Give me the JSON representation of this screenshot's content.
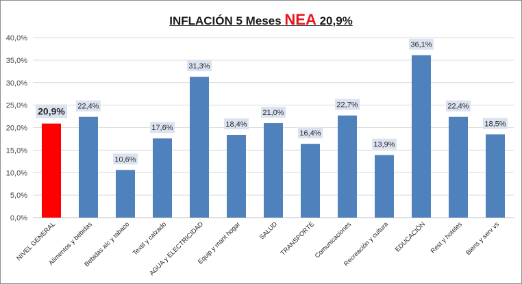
{
  "chart_data": {
    "type": "bar",
    "title_prefix": "INFLACIÓN 5 Meses",
    "title_accent": "NEA",
    "title_suffix": "20,9%",
    "categories": [
      "NIVEL GENERAL",
      "Alimentos y bebidas",
      "Bebidas alc y tabaco",
      "Textil y calzado",
      "AGUA y ELECTRICIDAD",
      "Equip y mant hogar",
      "SALUD",
      "TRANSPORTE",
      "Comunicaciones",
      "Recreación y cultura",
      "EDUCACIÓN",
      "Rest y hoteles",
      "Biens y serv vs"
    ],
    "values": [
      20.9,
      22.4,
      10.6,
      17.6,
      31.3,
      18.4,
      21.0,
      16.4,
      22.7,
      13.9,
      36.1,
      22.4,
      18.5
    ],
    "data_labels": [
      "20,9%",
      "22,4%",
      "10,6%",
      "17,6%",
      "31,3%",
      "18,4%",
      "21,0%",
      "16,4%",
      "22,7%",
      "13,9%",
      "36,1%",
      "22,4%",
      "18,5%"
    ],
    "ylim": [
      0,
      40
    ],
    "yticks": [
      0,
      5,
      10,
      15,
      20,
      25,
      30,
      35,
      40
    ],
    "ytick_labels": [
      "0,0%",
      "5,0%",
      "10,0%",
      "15,0%",
      "20,0%",
      "25,0%",
      "30,0%",
      "35,0%",
      "40,0%"
    ],
    "highlight_index": 0,
    "grid": true,
    "legend": "none",
    "colors": {
      "bar": "#4f81bd",
      "highlight": "#ff0000",
      "label_bg": "#dbe3f0",
      "grid": "#d9d9d9",
      "title_accent": "#e8141b"
    }
  }
}
